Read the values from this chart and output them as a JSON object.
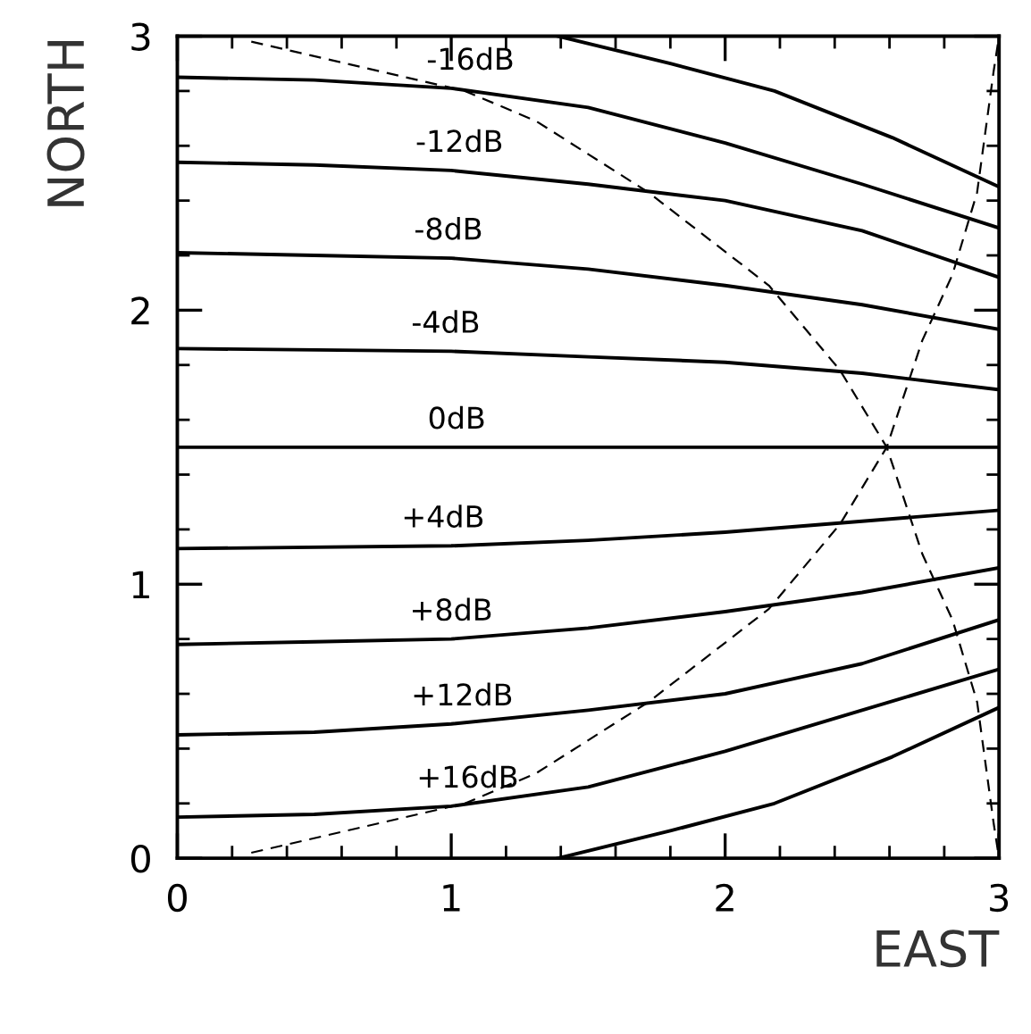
{
  "chart_data": {
    "type": "line",
    "xlabel": "EAST",
    "ylabel": "NORTH",
    "xlim": [
      0,
      3
    ],
    "ylim": [
      0,
      3
    ],
    "xticks": [
      0,
      {
        "value": 0.2,
        "label": null
      },
      {
        "value": 0.4,
        "label": null
      },
      {
        "value": 0.6,
        "label": null
      },
      {
        "value": 0.8,
        "label": null
      },
      1,
      {
        "value": 1.2,
        "label": null
      },
      {
        "value": 1.4,
        "label": null
      },
      {
        "value": 1.6,
        "label": null
      },
      {
        "value": 1.8,
        "label": null
      },
      2,
      {
        "value": 2.2,
        "label": null
      },
      {
        "value": 2.4,
        "label": null
      },
      {
        "value": 2.6,
        "label": null
      },
      {
        "value": 2.8,
        "label": null
      },
      3
    ],
    "yticks": [
      0,
      {
        "value": 0.2,
        "label": null
      },
      {
        "value": 0.4,
        "label": null
      },
      {
        "value": 0.6,
        "label": null
      },
      {
        "value": 0.8,
        "label": null
      },
      1,
      {
        "value": 1.2,
        "label": null
      },
      {
        "value": 1.4,
        "label": null
      },
      {
        "value": 1.6,
        "label": null
      },
      {
        "value": 1.8,
        "label": null
      },
      2,
      {
        "value": 2.2,
        "label": null
      },
      {
        "value": 2.4,
        "label": null
      },
      {
        "value": 2.6,
        "label": null
      },
      {
        "value": 2.8,
        "label": null
      },
      3
    ],
    "grid": false,
    "legend": false,
    "marker": "none",
    "line_style": "solid",
    "series": [
      {
        "color": "#000000",
        "x": [
          1.39,
          1.8,
          2.18,
          2.61,
          3
        ],
        "values": [
          3,
          2.9,
          2.8,
          2.63,
          2.45
        ]
      },
      {
        "color": "#000000",
        "x": [
          0,
          0.5,
          1,
          1.5,
          2,
          2.5,
          3
        ],
        "values": [
          2.85,
          2.84,
          2.81,
          2.74,
          2.61,
          2.46,
          2.3
        ]
      },
      {
        "color": "#000000",
        "x": [
          0,
          0.5,
          1,
          1.5,
          2,
          2.5,
          3
        ],
        "values": [
          2.54,
          2.53,
          2.51,
          2.46,
          2.4,
          2.29,
          2.12
        ]
      },
      {
        "color": "#000000",
        "x": [
          0,
          0.5,
          1,
          1.5,
          2,
          2.5,
          3
        ],
        "values": [
          2.21,
          2.2,
          2.19,
          2.15,
          2.09,
          2.02,
          1.93
        ]
      },
      {
        "color": "#000000",
        "x": [
          0,
          1,
          1.5,
          2,
          2.5,
          3
        ],
        "values": [
          1.86,
          1.85,
          1.83,
          1.81,
          1.77,
          1.71
        ]
      },
      {
        "color": "#000000",
        "x": [
          0,
          3
        ],
        "values": [
          1.5,
          1.5
        ]
      },
      {
        "color": "#000000",
        "x": [
          0,
          1,
          1.5,
          2,
          2.5,
          3
        ],
        "values": [
          1.13,
          1.14,
          1.16,
          1.19,
          1.23,
          1.27
        ]
      },
      {
        "color": "#000000",
        "x": [
          0,
          0.5,
          1,
          1.5,
          2,
          2.5,
          3
        ],
        "values": [
          0.78,
          0.79,
          0.8,
          0.84,
          0.9,
          0.97,
          1.06
        ]
      },
      {
        "color": "#000000",
        "x": [
          0,
          0.5,
          1,
          1.5,
          2,
          2.5,
          3
        ],
        "values": [
          0.45,
          0.46,
          0.49,
          0.54,
          0.6,
          0.71,
          0.87
        ]
      },
      {
        "color": "#000000",
        "x": [
          0,
          0.5,
          1,
          1.5,
          2,
          2.5,
          3
        ],
        "values": [
          0.15,
          0.16,
          0.19,
          0.26,
          0.39,
          0.54,
          0.69
        ]
      },
      {
        "color": "#000000",
        "x": [
          1.39,
          1.8,
          2.18,
          2.61,
          3
        ],
        "values": [
          0,
          0.1,
          0.2,
          0.37,
          0.55
        ]
      },
      {
        "color": "#000000",
        "line_style": "dashed",
        "x": [
          0.27,
          1.05,
          1.31,
          1.72,
          2.16,
          2.42,
          2.59,
          2.72,
          2.83,
          2.92,
          2.98,
          3
        ],
        "values": [
          2.98,
          2.8,
          2.69,
          2.43,
          2.09,
          1.78,
          1.5,
          1.11,
          0.87,
          0.57,
          0.13,
          0
        ]
      },
      {
        "color": "#000000",
        "line_style": "dashed",
        "x": [
          0.27,
          1.05,
          1.31,
          1.72,
          2.16,
          2.42,
          2.59,
          2.72,
          2.83,
          2.92,
          2.98,
          3
        ],
        "values": [
          0.02,
          0.2,
          0.31,
          0.57,
          0.91,
          1.22,
          1.5,
          1.89,
          2.13,
          2.43,
          2.87,
          3
        ]
      }
    ],
    "annotations": [
      {
        "text": "-16dB",
        "x": 1.07,
        "y": 2.81
      },
      {
        "text": "-12dB",
        "x": 1.03,
        "y": 2.51
      },
      {
        "text": "-8dB",
        "x": 0.99,
        "y": 2.19
      },
      {
        "text": "-4dB",
        "x": 0.98,
        "y": 1.85
      },
      {
        "text": "0dB",
        "x": 1.02,
        "y": 1.5
      },
      {
        "text": "+4dB",
        "x": 0.97,
        "y": 1.14
      },
      {
        "text": "+8dB",
        "x": 1.0,
        "y": 0.8
      },
      {
        "text": "+12dB",
        "x": 1.04,
        "y": 0.49
      },
      {
        "text": "+16dB",
        "x": 1.06,
        "y": 0.19
      }
    ]
  }
}
